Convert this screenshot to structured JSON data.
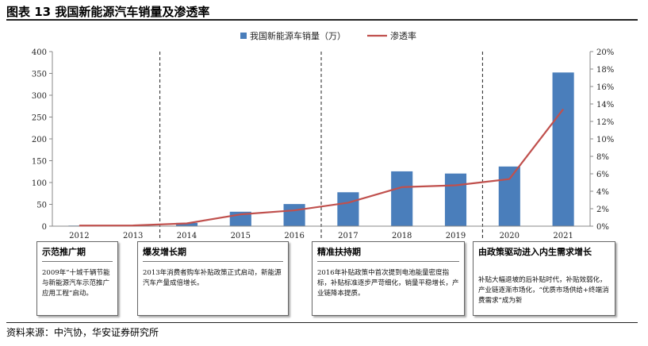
{
  "figure_title": "图表 13 我国新能源汽车销量及渗透率",
  "source_note": "资料来源：中汽协，华安证券研究所",
  "chart_data": {
    "type": "bar",
    "categories": [
      "2012",
      "2013",
      "2014",
      "2015",
      "2016",
      "2017",
      "2018",
      "2019",
      "2020",
      "2021"
    ],
    "series": [
      {
        "name": "我国新能源车销量（万）",
        "type": "bar",
        "axis": "left",
        "color": "#4a7ebb",
        "values": [
          1.3,
          1.8,
          7.5,
          33.1,
          50.7,
          77.7,
          125.6,
          120.6,
          136.7,
          352.1
        ]
      },
      {
        "name": "渗透率",
        "type": "line",
        "axis": "right",
        "color": "#c0504d",
        "values": [
          0.07,
          0.08,
          0.32,
          1.35,
          1.81,
          2.69,
          4.47,
          4.68,
          5.4,
          13.4
        ]
      }
    ],
    "y_left": {
      "min": 0,
      "max": 400,
      "ticks": [
        "0",
        "50",
        "100",
        "150",
        "200",
        "250",
        "300",
        "350",
        "400"
      ]
    },
    "y_right": {
      "min": 0,
      "max": 20,
      "ticks": [
        "0%",
        "2%",
        "4%",
        "6%",
        "8%",
        "10%",
        "12%",
        "14%",
        "16%",
        "18%",
        "20%"
      ]
    },
    "legend": "top",
    "period_dividers_between": [
      [
        "2013",
        "2014"
      ],
      [
        "2016",
        "2017"
      ],
      [
        "2019",
        "2020"
      ]
    ],
    "grid": false
  },
  "periods": [
    {
      "title": "示范推广期",
      "text": "2009年“十城千辆节能与新能源汽车示范推广应用工程”启动。"
    },
    {
      "title": "爆发增长期",
      "text": "2013年消费者购车补贴政策正式启动，新能源汽车产量成倍增长。"
    },
    {
      "title": "精准扶持期",
      "text": "2016年补贴政策中首次提到电池能量密度指标，补贴标准逐步严苛细化，销量平稳增长，产业链降本提质。"
    },
    {
      "title": "由政策驱动进入内生需求增长",
      "text": "补贴大幅退坡的后补贴时代，补贴效弱化，产业链逐渐市场化，“优质市场供给+终端消费需求”成为新"
    }
  ]
}
